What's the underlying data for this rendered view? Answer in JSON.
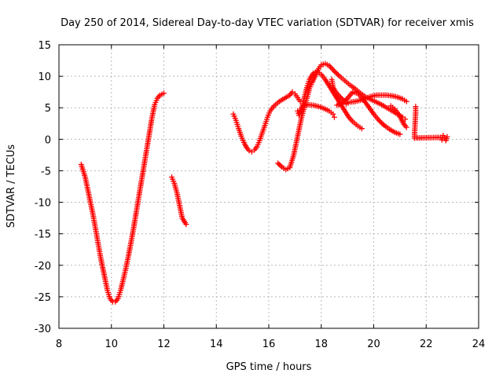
{
  "chart_data": {
    "type": "scatter",
    "title": "Day 250 of 2014, Sidereal Day-to-day VTEC variation (SDTVAR) for receiver xmis",
    "xlabel": "GPS time / hours",
    "ylabel": "SDTVAR / TECUs",
    "xlim": [
      8,
      24
    ],
    "ylim": [
      -30,
      15
    ],
    "x_ticks": [
      "8",
      "10",
      "12",
      "14",
      "16",
      "18",
      "20",
      "22",
      "24"
    ],
    "y_ticks": [
      "-30",
      "-25",
      "-20",
      "-15",
      "-10",
      "-5",
      "0",
      "5",
      "10",
      "15"
    ],
    "grid": true,
    "legend": "none",
    "marker": "+",
    "series_color": "#ff0000",
    "series": [
      {
        "points": [
          [
            8.85,
            -4
          ],
          [
            9.0,
            -6
          ],
          [
            9.15,
            -9
          ],
          [
            9.3,
            -12
          ],
          [
            9.45,
            -15.5
          ],
          [
            9.6,
            -19
          ],
          [
            9.75,
            -22
          ],
          [
            9.85,
            -24
          ],
          [
            9.95,
            -25.3
          ],
          [
            10.05,
            -25.8
          ],
          [
            10.15,
            -25.8
          ],
          [
            10.25,
            -25.3
          ],
          [
            10.35,
            -24
          ],
          [
            10.45,
            -22.3
          ],
          [
            10.55,
            -20.5
          ],
          [
            10.65,
            -18.5
          ],
          [
            10.75,
            -16.3
          ],
          [
            10.85,
            -14
          ],
          [
            10.95,
            -11.5
          ],
          [
            11.05,
            -9
          ],
          [
            11.15,
            -6.5
          ],
          [
            11.25,
            -4
          ],
          [
            11.35,
            -1.5
          ],
          [
            11.45,
            1
          ],
          [
            11.55,
            3.5
          ],
          [
            11.65,
            5.5
          ],
          [
            11.75,
            6.5
          ],
          [
            11.85,
            7
          ],
          [
            12.0,
            7.3
          ]
        ]
      },
      {
        "points": [
          [
            12.3,
            -6
          ],
          [
            12.4,
            -7
          ],
          [
            12.5,
            -8.5
          ],
          [
            12.6,
            -10.5
          ],
          [
            12.7,
            -12.5
          ],
          [
            12.85,
            -13.5
          ]
        ]
      },
      {
        "points": [
          [
            14.65,
            4
          ],
          [
            14.75,
            3
          ],
          [
            14.85,
            1.7
          ],
          [
            14.95,
            0.5
          ],
          [
            15.05,
            -0.5
          ],
          [
            15.15,
            -1.3
          ],
          [
            15.25,
            -1.8
          ],
          [
            15.35,
            -2
          ],
          [
            15.45,
            -1.7
          ],
          [
            15.55,
            -1.2
          ],
          [
            15.65,
            -0.2
          ],
          [
            15.75,
            1
          ],
          [
            15.85,
            2.2
          ],
          [
            15.95,
            3.5
          ],
          [
            16.05,
            4.5
          ],
          [
            16.2,
            5.3
          ],
          [
            16.4,
            6
          ],
          [
            16.6,
            6.5
          ],
          [
            16.8,
            7
          ],
          [
            16.9,
            7.5
          ],
          [
            17.0,
            7.2
          ],
          [
            17.1,
            6.6
          ],
          [
            17.2,
            6
          ]
        ]
      },
      {
        "points": [
          [
            16.35,
            -3.8
          ],
          [
            16.5,
            -4.4
          ],
          [
            16.65,
            -4.8
          ],
          [
            16.8,
            -4.5
          ],
          [
            16.95,
            -2.5
          ],
          [
            17.05,
            -0.5
          ],
          [
            17.15,
            1.5
          ],
          [
            17.25,
            3.5
          ],
          [
            17.35,
            5
          ],
          [
            17.45,
            6.5
          ],
          [
            17.55,
            8
          ],
          [
            17.65,
            9
          ],
          [
            17.8,
            10.3
          ],
          [
            17.9,
            11.2
          ],
          [
            18.0,
            11.8
          ],
          [
            18.15,
            12
          ],
          [
            18.3,
            11.7
          ],
          [
            18.5,
            10.8
          ],
          [
            18.7,
            10
          ],
          [
            18.9,
            9.3
          ],
          [
            19.1,
            8.6
          ],
          [
            19.3,
            8
          ],
          [
            19.5,
            7.3
          ],
          [
            19.7,
            6.7
          ],
          [
            19.9,
            6.3
          ],
          [
            20.1,
            5.9
          ],
          [
            20.3,
            5.5
          ],
          [
            20.5,
            5
          ],
          [
            20.7,
            4.5
          ],
          [
            20.9,
            4
          ],
          [
            21.1,
            3.5
          ],
          [
            21.2,
            3.2
          ]
        ]
      },
      {
        "points": [
          [
            17.25,
            4.5
          ],
          [
            17.35,
            6.5
          ],
          [
            17.45,
            8.2
          ],
          [
            17.55,
            9.5
          ],
          [
            17.7,
            10.5
          ],
          [
            17.85,
            10.8
          ],
          [
            18.0,
            10.3
          ],
          [
            18.15,
            9.5
          ],
          [
            18.3,
            8.5
          ],
          [
            18.45,
            7.5
          ],
          [
            18.6,
            6.5
          ],
          [
            18.75,
            5.5
          ],
          [
            18.9,
            4.5
          ],
          [
            19.05,
            3.5
          ],
          [
            19.2,
            2.8
          ],
          [
            19.4,
            2.1
          ],
          [
            19.55,
            1.7
          ]
        ]
      },
      {
        "points": [
          [
            17.1,
            4.5
          ],
          [
            17.15,
            3.8
          ],
          [
            17.3,
            5.4
          ],
          [
            17.5,
            5.5
          ],
          [
            17.7,
            5.4
          ],
          [
            17.9,
            5.2
          ],
          [
            18.1,
            4.9
          ],
          [
            18.3,
            4.5
          ],
          [
            18.45,
            4
          ],
          [
            18.5,
            3.5
          ]
        ]
      },
      {
        "points": [
          [
            18.4,
            9.5
          ],
          [
            18.45,
            8.3
          ],
          [
            18.55,
            7.5
          ],
          [
            18.7,
            6.8
          ],
          [
            18.85,
            6.2
          ],
          [
            18.95,
            5.6
          ],
          [
            19.1,
            5.9
          ],
          [
            19.3,
            6
          ],
          [
            19.5,
            6.2
          ],
          [
            19.7,
            6.5
          ],
          [
            19.9,
            6.8
          ],
          [
            20.1,
            7
          ],
          [
            20.3,
            7
          ],
          [
            20.5,
            7
          ],
          [
            20.7,
            6.9
          ],
          [
            20.9,
            6.7
          ],
          [
            21.1,
            6.4
          ],
          [
            21.25,
            6
          ]
        ]
      },
      {
        "points": [
          [
            18.6,
            5.4
          ],
          [
            18.8,
            5.7
          ],
          [
            19.0,
            6.5
          ],
          [
            19.2,
            7.5
          ],
          [
            19.4,
            7.3
          ],
          [
            19.6,
            6.3
          ],
          [
            19.8,
            5.2
          ],
          [
            20.0,
            4
          ],
          [
            20.2,
            3
          ],
          [
            20.4,
            2.2
          ],
          [
            20.6,
            1.6
          ],
          [
            20.8,
            1.1
          ],
          [
            21.0,
            0.8
          ]
        ]
      },
      {
        "points": [
          [
            20.65,
            5.3
          ],
          [
            20.8,
            4.8
          ],
          [
            20.95,
            4
          ],
          [
            21.05,
            3.2
          ],
          [
            21.15,
            2.4
          ],
          [
            21.25,
            1.9
          ]
        ]
      },
      {
        "points": [
          [
            21.6,
            5.2
          ],
          [
            21.6,
            4.3
          ],
          [
            21.55,
            0.2
          ],
          [
            22.55,
            0.3
          ],
          [
            22.6,
            -0.1
          ],
          [
            22.65,
            0.6
          ],
          [
            22.7,
            0.2
          ],
          [
            22.75,
            -0.2
          ],
          [
            22.8,
            0.4
          ]
        ]
      }
    ]
  }
}
